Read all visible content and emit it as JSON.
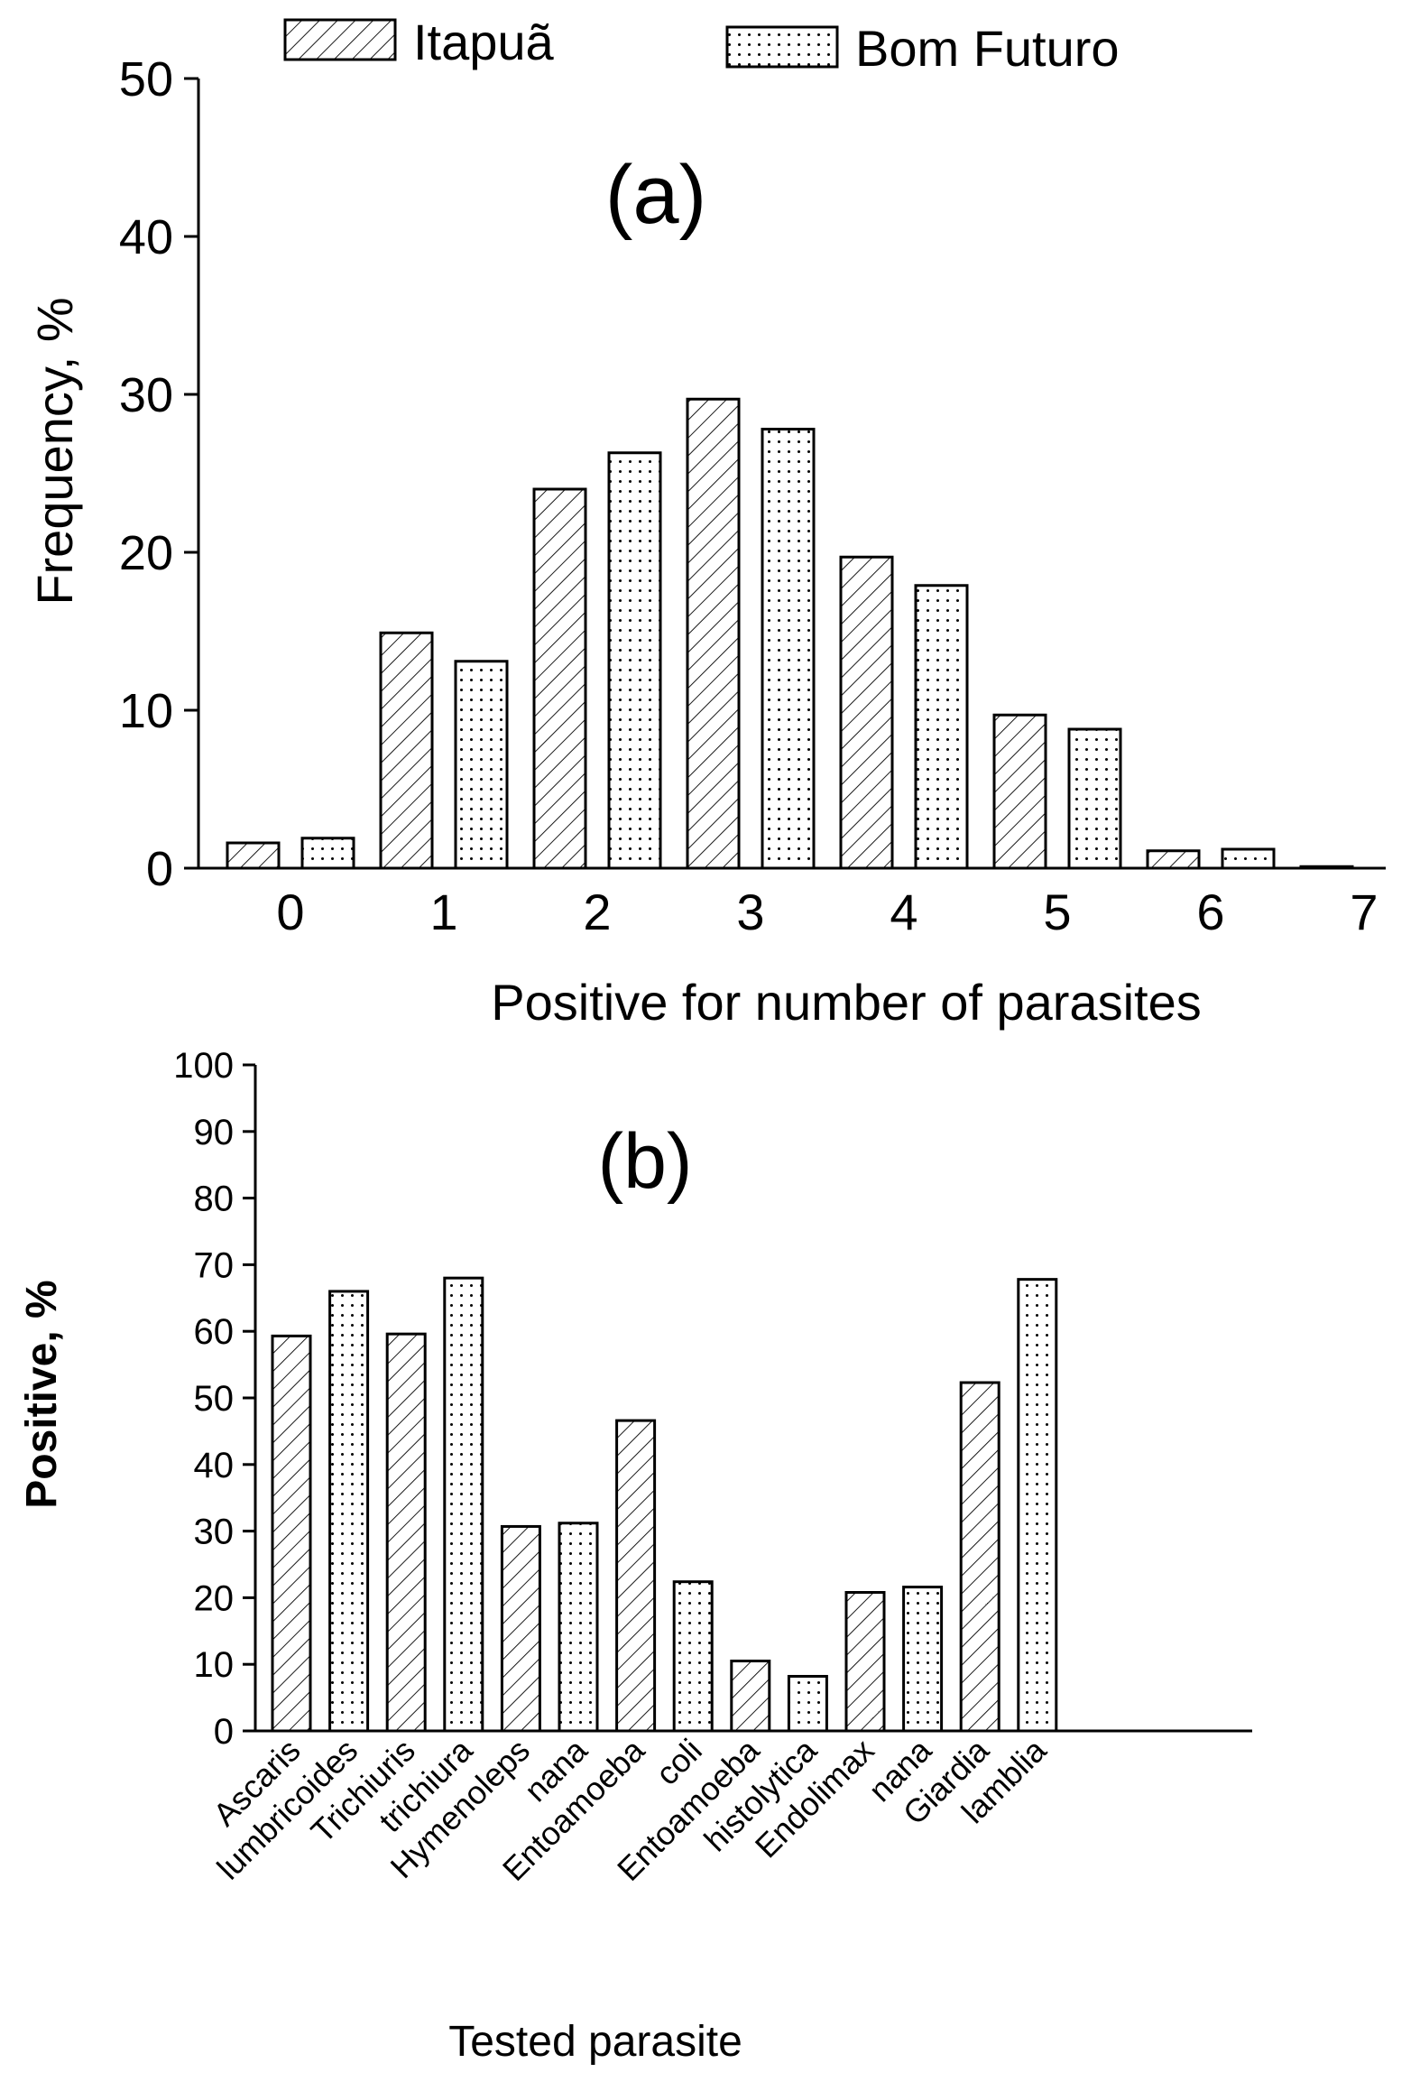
{
  "legend": {
    "items": [
      {
        "name": "Itapuã",
        "pattern": "hatch"
      },
      {
        "name": "Bom Futuro",
        "pattern": "dots"
      }
    ]
  },
  "chart_data": [
    {
      "type": "bar",
      "panel_label": "(a)",
      "xlabel": "Positive for number of parasites",
      "ylabel": "Frequency, %",
      "categories": [
        "0",
        "1",
        "2",
        "3",
        "4",
        "5",
        "6",
        "7"
      ],
      "ylim": [
        0,
        50
      ],
      "yticks": [
        0,
        10,
        20,
        30,
        40,
        50
      ],
      "series": [
        {
          "name": "Itapuã",
          "pattern": "hatch",
          "values": [
            1.6,
            14.9,
            24.0,
            29.7,
            19.7,
            9.7,
            1.1,
            0.1
          ]
        },
        {
          "name": "Bom Futuro",
          "pattern": "dots",
          "values": [
            1.9,
            13.1,
            26.3,
            27.8,
            17.9,
            8.8,
            1.2,
            null
          ]
        }
      ]
    },
    {
      "type": "bar",
      "panel_label": "(b)",
      "xlabel": "Tested parasite",
      "ylabel": "Positive, %",
      "ylim": [
        0,
        100
      ],
      "yticks": [
        0,
        10,
        20,
        30,
        40,
        50,
        60,
        70,
        80,
        90,
        100
      ],
      "bars": [
        {
          "label": "Ascaris",
          "series": "Itapuã",
          "pattern": "hatch",
          "value": 59.3
        },
        {
          "label": "lumbricoides",
          "series": "Bom Futuro",
          "pattern": "dots",
          "value": 66.0
        },
        {
          "label": "Trichiuris",
          "series": "Itapuã",
          "pattern": "hatch",
          "value": 59.6
        },
        {
          "label": "trichiura",
          "series": "Bom Futuro",
          "pattern": "dots",
          "value": 68.0
        },
        {
          "label": "Hymenoleps",
          "series": "Itapuã",
          "pattern": "hatch",
          "value": 30.7
        },
        {
          "label": "nana",
          "series": "Bom Futuro",
          "pattern": "dots",
          "value": 31.2
        },
        {
          "label": "Entoamoeba",
          "series": "Itapuã",
          "pattern": "hatch",
          "value": 46.6
        },
        {
          "label": "coli",
          "series": "Bom Futuro",
          "pattern": "dots",
          "value": 22.4
        },
        {
          "label": "Entoamoeba",
          "series": "Itapuã",
          "pattern": "hatch",
          "value": 10.5
        },
        {
          "label": "histolytica",
          "series": "Bom Futuro",
          "pattern": "dots",
          "value": 8.2
        },
        {
          "label": "Endolimax",
          "series": "Itapuã",
          "pattern": "hatch",
          "value": 20.8
        },
        {
          "label": "nana",
          "series": "Bom Futuro",
          "pattern": "dots",
          "value": 21.6
        },
        {
          "label": "Giardia",
          "series": "Itapuã",
          "pattern": "hatch",
          "value": 52.3
        },
        {
          "label": "lamblia",
          "series": "Bom Futuro",
          "pattern": "dots",
          "value": 67.8
        }
      ]
    }
  ]
}
